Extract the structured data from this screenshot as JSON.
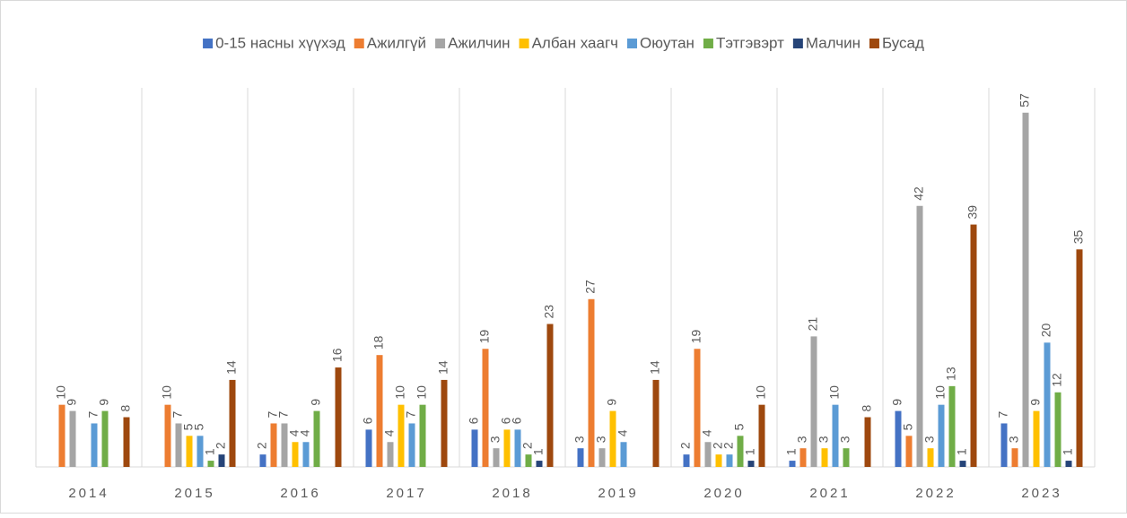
{
  "chart_data": {
    "type": "bar",
    "categories": [
      "2014",
      "2015",
      "2016",
      "2017",
      "2018",
      "2019",
      "2020",
      "2021",
      "2022",
      "2023"
    ],
    "series": [
      {
        "name": "0-15 насны хүүхэд",
        "color": "#4472c4",
        "values": [
          null,
          null,
          2,
          6,
          6,
          3,
          2,
          1,
          9,
          7
        ]
      },
      {
        "name": "Ажилгүй",
        "color": "#ed7d31",
        "values": [
          10,
          10,
          7,
          18,
          19,
          27,
          19,
          3,
          5,
          3
        ]
      },
      {
        "name": "Ажилчин",
        "color": "#a5a5a5",
        "values": [
          9,
          7,
          7,
          4,
          3,
          3,
          4,
          21,
          42,
          57
        ]
      },
      {
        "name": "Албан хаагч",
        "color": "#ffc000",
        "values": [
          null,
          5,
          4,
          10,
          6,
          9,
          2,
          3,
          3,
          9
        ]
      },
      {
        "name": "Оюутан",
        "color": "#5b9bd5",
        "values": [
          7,
          5,
          4,
          7,
          6,
          4,
          2,
          10,
          10,
          20
        ]
      },
      {
        "name": "Тэтгэвэрт",
        "color": "#70ad47",
        "values": [
          9,
          1,
          9,
          10,
          2,
          null,
          5,
          3,
          13,
          12
        ]
      },
      {
        "name": "Малчин",
        "color": "#264478",
        "values": [
          null,
          2,
          null,
          null,
          1,
          null,
          1,
          null,
          1,
          1
        ]
      },
      {
        "name": "Бусад",
        "color": "#9e480e",
        "values": [
          8,
          14,
          16,
          14,
          23,
          14,
          10,
          8,
          39,
          35
        ]
      }
    ],
    "ylim": [
      0,
      61
    ],
    "legend": "top"
  }
}
